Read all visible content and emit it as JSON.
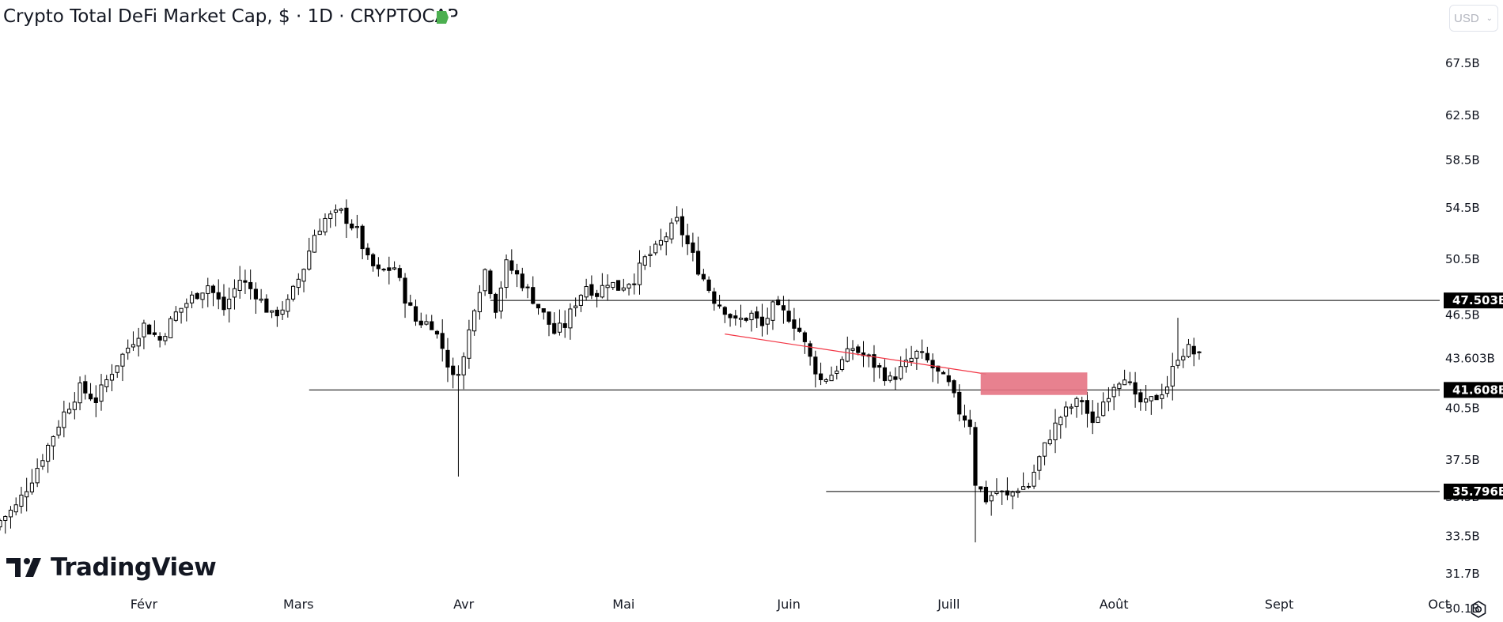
{
  "header": {
    "title": "Crypto Total DeFi Market Cap, $ · 1D · CRYPTOCAP",
    "flag_color": "#4caf50",
    "currency": "USD"
  },
  "branding": {
    "logo_text": "TradingView"
  },
  "colors": {
    "up_body": "#ffffff",
    "down_body": "#000000",
    "wick": "#000000",
    "trendline": "#f23645",
    "zone": "#e57383",
    "hline": "#000000",
    "axis_text": "#131722",
    "label_bg": "#000000",
    "label_text": "#ffffff"
  },
  "icons": {
    "settings": "gear-icon",
    "flag": "flag-icon",
    "logo": "tradingview-logo-icon"
  },
  "chart_data": {
    "type": "candlestick",
    "y_axis": {
      "scale": "log",
      "ticks": [
        "67.5B",
        "62.5B",
        "58.5B",
        "54.5B",
        "50.5B",
        "46.5B",
        "43.603B",
        "40.5B",
        "37.5B",
        "35.5B",
        "33.5B",
        "31.7B",
        "30.1B"
      ],
      "tick_values": [
        67.5,
        62.5,
        58.5,
        54.5,
        50.5,
        46.5,
        43.603,
        40.5,
        37.5,
        35.5,
        33.5,
        31.7,
        30.1
      ]
    },
    "x_axis": {
      "ticks": [
        "Févr",
        "Mars",
        "Avr",
        "Mai",
        "Juin",
        "Juill",
        "Août",
        "Sept",
        "Oct"
      ],
      "tick_dates": [
        "2024-02-01",
        "2024-03-01",
        "2024-04-01",
        "2024-05-01",
        "2024-06-01",
        "2024-07-01",
        "2024-08-01",
        "2024-09-01",
        "2024-10-01"
      ],
      "range": [
        "2024-01-05",
        "2024-10-13"
      ]
    },
    "horizontal_levels": [
      {
        "value": 47.503,
        "label": "47.503B",
        "from": "2024-04-06"
      },
      {
        "value": 41.608,
        "label": "41.608B",
        "from": "2024-03-03"
      },
      {
        "value": 35.796,
        "label": "35.796B",
        "from": "2024-06-08"
      }
    ],
    "trendline": {
      "start": {
        "date": "2024-05-20",
        "value": 45.2
      },
      "end": {
        "date": "2024-07-08",
        "value": 42.6
      }
    },
    "zone": {
      "from": "2024-07-07",
      "to": "2024-07-27",
      "top": 42.7,
      "bottom": 41.3
    },
    "anchors": [
      [
        "2024-01-05",
        34.3
      ],
      [
        "2024-01-08",
        35.0
      ],
      [
        "2024-01-11",
        36.5
      ],
      [
        "2024-01-14",
        38.3
      ],
      [
        "2024-01-17",
        40.2
      ],
      [
        "2024-01-20",
        41.7
      ],
      [
        "2024-01-23",
        41.0
      ],
      [
        "2024-01-26",
        42.8
      ],
      [
        "2024-01-29",
        44.3
      ],
      [
        "2024-02-01",
        45.8
      ],
      [
        "2024-02-04",
        44.8
      ],
      [
        "2024-02-07",
        46.6
      ],
      [
        "2024-02-10",
        47.7
      ],
      [
        "2024-02-13",
        48.6
      ],
      [
        "2024-02-16",
        46.9
      ],
      [
        "2024-02-19",
        49.0
      ],
      [
        "2024-02-22",
        48.0
      ],
      [
        "2024-02-25",
        46.4
      ],
      [
        "2024-02-28",
        47.3
      ],
      [
        "2024-03-02",
        49.9
      ],
      [
        "2024-03-04",
        52.4
      ],
      [
        "2024-03-06",
        53.6
      ],
      [
        "2024-03-09",
        54.1
      ],
      [
        "2024-03-12",
        52.6
      ],
      [
        "2024-03-14",
        50.4
      ],
      [
        "2024-03-16",
        49.5
      ],
      [
        "2024-03-19",
        49.9
      ],
      [
        "2024-03-21",
        47.7
      ],
      [
        "2024-03-23",
        46.1
      ],
      [
        "2024-03-26",
        45.9
      ],
      [
        "2024-03-28",
        44.3
      ],
      [
        "2024-03-30",
        42.3
      ],
      [
        "2024-04-01",
        43.6
      ],
      [
        "2024-04-03",
        47.2
      ],
      [
        "2024-04-05",
        49.7
      ],
      [
        "2024-04-07",
        47.0
      ],
      [
        "2024-04-09",
        50.1
      ],
      [
        "2024-04-11",
        49.3
      ],
      [
        "2024-04-13",
        48.2
      ],
      [
        "2024-04-16",
        46.5
      ],
      [
        "2024-04-18",
        45.3
      ],
      [
        "2024-04-20",
        45.8
      ],
      [
        "2024-04-22",
        47.4
      ],
      [
        "2024-04-24",
        48.6
      ],
      [
        "2024-04-26",
        48.0
      ],
      [
        "2024-04-28",
        48.9
      ],
      [
        "2024-04-30",
        48.4
      ],
      [
        "2024-05-03",
        49.1
      ],
      [
        "2024-05-05",
        50.5
      ],
      [
        "2024-05-07",
        51.2
      ],
      [
        "2024-05-09",
        52.3
      ],
      [
        "2024-05-11",
        53.4
      ],
      [
        "2024-05-13",
        51.6
      ],
      [
        "2024-05-15",
        49.8
      ],
      [
        "2024-05-18",
        47.6
      ],
      [
        "2024-05-20",
        46.9
      ],
      [
        "2024-05-22",
        46.0
      ],
      [
        "2024-05-25",
        46.5
      ],
      [
        "2024-05-27",
        45.7
      ],
      [
        "2024-05-29",
        47.0
      ],
      [
        "2024-06-01",
        46.4
      ],
      [
        "2024-06-03",
        45.4
      ],
      [
        "2024-06-05",
        43.6
      ],
      [
        "2024-06-07",
        42.2
      ],
      [
        "2024-06-09",
        42.6
      ],
      [
        "2024-06-11",
        43.4
      ],
      [
        "2024-06-13",
        44.3
      ],
      [
        "2024-06-16",
        43.5
      ],
      [
        "2024-06-18",
        42.9
      ],
      [
        "2024-06-20",
        42.2
      ],
      [
        "2024-06-23",
        43.2
      ],
      [
        "2024-06-25",
        43.9
      ],
      [
        "2024-06-27",
        43.4
      ],
      [
        "2024-06-29",
        42.6
      ],
      [
        "2024-07-01",
        41.9
      ],
      [
        "2024-07-03",
        40.3
      ],
      [
        "2024-07-05",
        39.6
      ],
      [
        "2024-07-06",
        36.3
      ],
      [
        "2024-07-08",
        35.4
      ],
      [
        "2024-07-10",
        35.8
      ],
      [
        "2024-07-12",
        35.5
      ],
      [
        "2024-07-14",
        36.0
      ],
      [
        "2024-07-16",
        36.1
      ],
      [
        "2024-07-18",
        37.6
      ],
      [
        "2024-07-20",
        38.9
      ],
      [
        "2024-07-22",
        40.0
      ],
      [
        "2024-07-24",
        40.6
      ],
      [
        "2024-07-26",
        41.0
      ],
      [
        "2024-07-28",
        39.4
      ],
      [
        "2024-07-30",
        40.9
      ],
      [
        "2024-08-01",
        42.0
      ],
      [
        "2024-08-03",
        42.6
      ],
      [
        "2024-08-05",
        41.0
      ],
      [
        "2024-08-07",
        40.7
      ],
      [
        "2024-08-09",
        41.2
      ],
      [
        "2024-08-11",
        41.9
      ],
      [
        "2024-08-13",
        43.8
      ],
      [
        "2024-08-15",
        44.2
      ],
      [
        "2024-08-17",
        43.7
      ]
    ]
  }
}
